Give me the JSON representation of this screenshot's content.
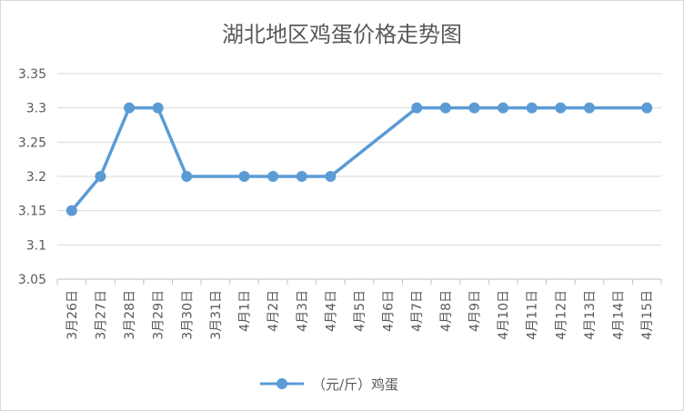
{
  "chart_data": {
    "type": "line",
    "title": "湖北地区鸡蛋价格走势图",
    "categories": [
      "3月26日",
      "3月27日",
      "3月28日",
      "3月29日",
      "3月30日",
      "3月31日",
      "4月1日",
      "4月2日",
      "4月3日",
      "4月4日",
      "4月5日",
      "4月6日",
      "4月7日",
      "4月8日",
      "4月9日",
      "4月10日",
      "4月11日",
      "4月12日",
      "4月13日",
      "4月14日",
      "4月15日"
    ],
    "series": [
      {
        "name": "（元/斤）鸡蛋",
        "values": [
          3.15,
          3.2,
          3.3,
          3.3,
          3.2,
          null,
          3.2,
          3.2,
          3.2,
          3.2,
          null,
          null,
          3.3,
          3.3,
          3.3,
          3.3,
          3.3,
          3.3,
          3.3,
          null,
          3.3
        ],
        "color": "#5b9bd5"
      }
    ],
    "ylim": [
      3.05,
      3.35
    ],
    "yticks": [
      "3.05",
      "3.1",
      "3.15",
      "3.2",
      "3.25",
      "3.3",
      "3.35"
    ],
    "grid": true,
    "legend": "bottom"
  }
}
